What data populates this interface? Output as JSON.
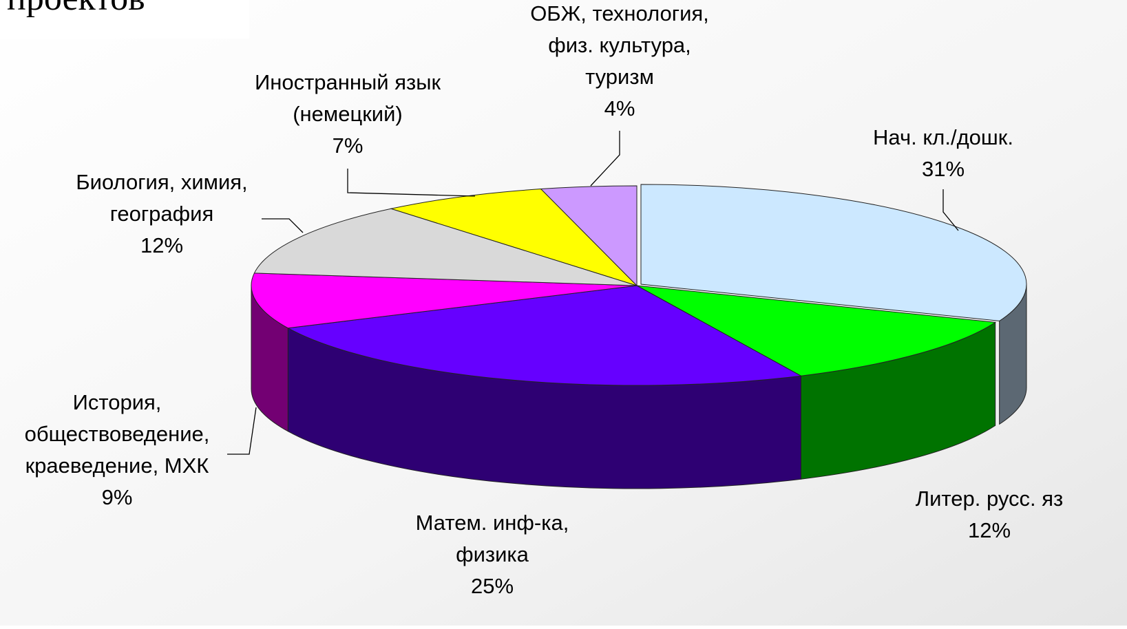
{
  "chart_data": {
    "type": "pie",
    "title": "проектов",
    "categories": [
      "Нач. кл./дошк.",
      "Литер. русс. яз",
      "Матем. инф-ка,\nфизика",
      "История,\nобществоведение,\nкраеведение, МХК",
      "Биология, химия,\nгеография",
      "Иностранный язык\n(немецкий)",
      "ОБЖ, технология,\nфиз. культура,\nтуризм"
    ],
    "values": [
      31,
      12,
      25,
      9,
      12,
      7,
      4
    ],
    "value_labels": [
      "31%",
      "12%",
      "25%",
      "9%",
      "12%",
      "7%",
      "4%"
    ],
    "colors": [
      "#cce8ff",
      "#00ff00",
      "#6600ff",
      "#ff00ff",
      "#d9d9d9",
      "#ffff00",
      "#cc99ff"
    ]
  }
}
